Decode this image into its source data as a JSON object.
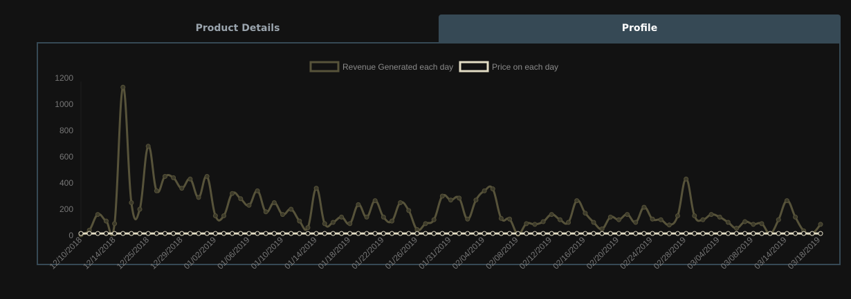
{
  "tabs": [
    {
      "label": "Product Details",
      "active": false
    },
    {
      "label": "Profile",
      "active": true
    }
  ],
  "colors": {
    "tab_active_bg": "#364955",
    "revenue_line": "#57533a",
    "price_line": "#e2dcc4"
  },
  "chart_data": {
    "type": "line",
    "title": "",
    "xlabel": "",
    "ylabel": "",
    "ylim": [
      0,
      1200
    ],
    "y_ticks": [
      "0",
      "200",
      "400",
      "600",
      "800",
      "1000",
      "1200"
    ],
    "x_start": "12/10/2018",
    "x_tick_labels": [
      "12/10/2018",
      "12/14/2018",
      "12/25/2018",
      "12/29/2018",
      "01/02/2019",
      "01/06/2019",
      "01/10/2019",
      "01/14/2019",
      "01/18/2019",
      "01/22/2019",
      "01/26/2019",
      "01/31/2019",
      "02/04/2019",
      "02/08/2019",
      "02/12/2019",
      "02/16/2019",
      "02/20/2019",
      "02/24/2019",
      "02/28/2019",
      "03/04/2019",
      "03/08/2019",
      "03/14/2019",
      "03/18/2019"
    ],
    "legend": {
      "position": "top"
    },
    "grid": false,
    "series": [
      {
        "name": "Revenue Generated each day",
        "values": [
          5,
          40,
          160,
          110,
          90,
          1130,
          250,
          200,
          680,
          340,
          450,
          440,
          360,
          430,
          290,
          450,
          150,
          150,
          320,
          280,
          230,
          340,
          180,
          250,
          160,
          200,
          110,
          60,
          360,
          90,
          100,
          140,
          90,
          235,
          140,
          265,
          140,
          110,
          250,
          190,
          45,
          90,
          120,
          300,
          270,
          285,
          125,
          270,
          340,
          355,
          130,
          125,
          10,
          90,
          85,
          105,
          160,
          120,
          100,
          265,
          170,
          100,
          50,
          140,
          120,
          160,
          100,
          215,
          125,
          120,
          80,
          150,
          430,
          150,
          120,
          160,
          140,
          100,
          55,
          105,
          85,
          90,
          15,
          120,
          265,
          140,
          35,
          15,
          85
        ]
      },
      {
        "name": "Price on each day",
        "values": [
          15,
          15,
          15,
          15,
          15,
          15,
          15,
          15,
          15,
          15,
          15,
          15,
          15,
          15,
          15,
          15,
          15,
          15,
          15,
          15,
          15,
          15,
          15,
          15,
          15,
          15,
          15,
          15,
          15,
          15,
          15,
          15,
          15,
          15,
          15,
          15,
          15,
          15,
          15,
          15,
          15,
          15,
          15,
          15,
          15,
          15,
          15,
          15,
          15,
          15,
          15,
          15,
          15,
          15,
          15,
          15,
          15,
          15,
          15,
          15,
          15,
          15,
          15,
          15,
          15,
          15,
          15,
          15,
          15,
          15,
          15,
          15,
          15,
          15,
          15,
          15,
          15,
          15,
          15,
          15,
          15,
          15,
          15,
          15,
          15,
          15,
          15,
          15,
          15
        ]
      }
    ]
  }
}
